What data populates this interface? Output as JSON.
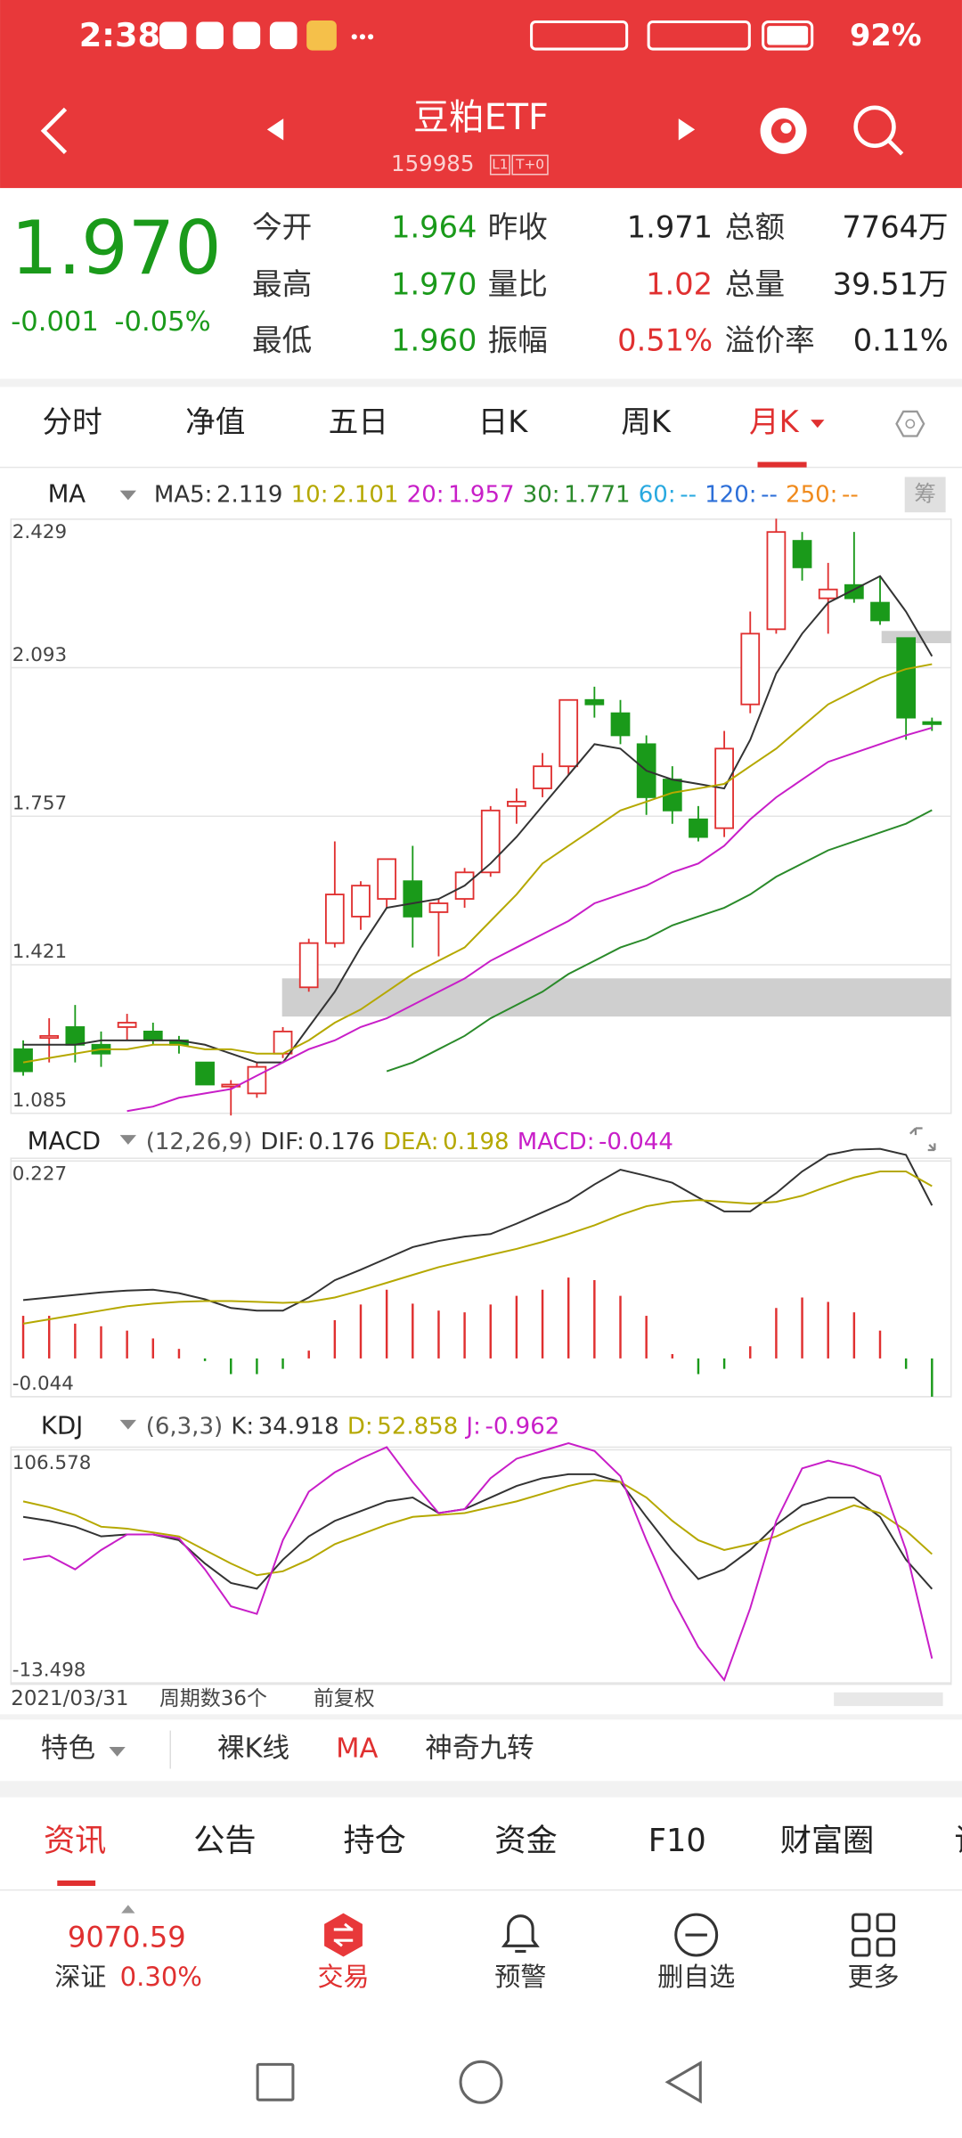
{
  "status_bar": {
    "time": "2:38",
    "battery": "92%"
  },
  "header": {
    "title": "豆粕ETF",
    "code": "159985",
    "badges": [
      "L1",
      "T+0"
    ]
  },
  "quote": {
    "price": "1.970",
    "change": "-0.001",
    "change_pct": "-0.05%",
    "color": "#1a9a1a",
    "fields": [
      {
        "label": "今开",
        "value": "1.964",
        "color": "#1a9a1a"
      },
      {
        "label": "昨收",
        "value": "1.971",
        "color": "#222222"
      },
      {
        "label": "总额",
        "value": "7764万",
        "color": "#222222"
      },
      {
        "label": "最高",
        "value": "1.970",
        "color": "#1a9a1a"
      },
      {
        "label": "量比",
        "value": "1.02",
        "color": "#e03030"
      },
      {
        "label": "总量",
        "value": "39.51万",
        "color": "#222222"
      },
      {
        "label": "最低",
        "value": "1.960",
        "color": "#1a9a1a"
      },
      {
        "label": "振幅",
        "value": "0.51%",
        "color": "#e03030"
      },
      {
        "label": "溢价率",
        "value": "0.11%",
        "color": "#222222"
      }
    ]
  },
  "tabs": [
    "分时",
    "净值",
    "五日",
    "日K",
    "周K",
    "月K"
  ],
  "chart": {
    "up_color": "#e03030",
    "down_color": "#1a9a1a",
    "ma_label": "MA",
    "side_label": "筹",
    "ylim": [
      1.085,
      2.429
    ],
    "yticks": [
      2.429,
      2.093,
      1.757,
      1.421,
      1.085
    ],
    "candles": [
      {
        "open": 1.23,
        "high": 1.25,
        "low": 1.17,
        "close": 1.18
      },
      {
        "open": 1.26,
        "high": 1.3,
        "low": 1.2,
        "close": 1.26
      },
      {
        "open": 1.28,
        "high": 1.33,
        "low": 1.2,
        "close": 1.24
      },
      {
        "open": 1.24,
        "high": 1.27,
        "low": 1.19,
        "close": 1.22
      },
      {
        "open": 1.28,
        "high": 1.31,
        "low": 1.25,
        "close": 1.29
      },
      {
        "open": 1.27,
        "high": 1.29,
        "low": 1.24,
        "close": 1.25
      },
      {
        "open": 1.25,
        "high": 1.26,
        "low": 1.22,
        "close": 1.24
      },
      {
        "open": 1.2,
        "high": 1.2,
        "low": 1.15,
        "close": 1.15
      },
      {
        "open": 1.15,
        "high": 1.16,
        "low": 1.08,
        "close": 1.15
      },
      {
        "open": 1.13,
        "high": 1.2,
        "low": 1.12,
        "close": 1.19
      },
      {
        "open": 1.22,
        "high": 1.28,
        "low": 1.21,
        "close": 1.27
      },
      {
        "open": 1.37,
        "high": 1.48,
        "low": 1.36,
        "close": 1.47
      },
      {
        "open": 1.47,
        "high": 1.7,
        "low": 1.46,
        "close": 1.58
      },
      {
        "open": 1.53,
        "high": 1.61,
        "low": 1.5,
        "close": 1.6
      },
      {
        "open": 1.57,
        "high": 1.66,
        "low": 1.55,
        "close": 1.66
      },
      {
        "open": 1.61,
        "high": 1.69,
        "low": 1.46,
        "close": 1.53
      },
      {
        "open": 1.54,
        "high": 1.57,
        "low": 1.44,
        "close": 1.56
      },
      {
        "open": 1.57,
        "high": 1.64,
        "low": 1.55,
        "close": 1.63
      },
      {
        "open": 1.63,
        "high": 1.78,
        "low": 1.62,
        "close": 1.77
      },
      {
        "open": 1.78,
        "high": 1.82,
        "low": 1.74,
        "close": 1.79
      },
      {
        "open": 1.82,
        "high": 1.9,
        "low": 1.8,
        "close": 1.87
      },
      {
        "open": 1.87,
        "high": 2.02,
        "low": 1.85,
        "close": 2.02
      },
      {
        "open": 2.02,
        "high": 2.05,
        "low": 1.98,
        "close": 2.01
      },
      {
        "open": 1.99,
        "high": 2.02,
        "low": 1.92,
        "close": 1.94
      },
      {
        "open": 1.92,
        "high": 1.94,
        "low": 1.76,
        "close": 1.8
      },
      {
        "open": 1.84,
        "high": 1.87,
        "low": 1.74,
        "close": 1.77
      },
      {
        "open": 1.75,
        "high": 1.78,
        "low": 1.7,
        "close": 1.71
      },
      {
        "open": 1.73,
        "high": 1.95,
        "low": 1.71,
        "close": 1.91
      },
      {
        "open": 2.01,
        "high": 2.22,
        "low": 1.99,
        "close": 2.17
      },
      {
        "open": 2.18,
        "high": 2.43,
        "low": 2.17,
        "close": 2.4
      },
      {
        "open": 2.38,
        "high": 2.4,
        "low": 2.29,
        "close": 2.32
      },
      {
        "open": 2.25,
        "high": 2.33,
        "low": 2.17,
        "close": 2.27
      },
      {
        "open": 2.28,
        "high": 2.4,
        "low": 2.24,
        "close": 2.25
      },
      {
        "open": 2.24,
        "high": 2.3,
        "low": 2.19,
        "close": 2.2
      },
      {
        "open": 2.16,
        "high": 2.16,
        "low": 1.93,
        "close": 1.98
      },
      {
        "open": 1.97,
        "high": 1.98,
        "low": 1.95,
        "close": 1.97
      }
    ],
    "ma": [
      {
        "name": "MA5:",
        "color": "#333333",
        "values": [
          1.24,
          1.24,
          1.24,
          1.25,
          1.25,
          1.25,
          1.25,
          1.24,
          1.22,
          1.2,
          1.2,
          1.28,
          1.36,
          1.46,
          1.55,
          1.56,
          1.57,
          1.6,
          1.65,
          1.71,
          1.78,
          1.85,
          1.92,
          1.91,
          1.86,
          1.84,
          1.83,
          1.82,
          1.93,
          2.08,
          2.17,
          2.24,
          2.27,
          2.3,
          2.22,
          2.119
        ]
      },
      {
        "name": "10:",
        "color": "#b5a800",
        "values": [
          1.2,
          1.21,
          1.22,
          1.23,
          1.23,
          1.24,
          1.24,
          1.23,
          1.23,
          1.22,
          1.22,
          1.25,
          1.29,
          1.32,
          1.36,
          1.4,
          1.43,
          1.46,
          1.52,
          1.58,
          1.65,
          1.69,
          1.73,
          1.77,
          1.79,
          1.81,
          1.82,
          1.83,
          1.87,
          1.91,
          1.96,
          2.01,
          2.04,
          2.07,
          2.09,
          2.101
        ]
      },
      {
        "name": "20:",
        "color": "#c81ec8",
        "values": [
          null,
          null,
          null,
          null,
          1.09,
          1.1,
          1.12,
          1.13,
          1.14,
          1.17,
          1.2,
          1.23,
          1.25,
          1.28,
          1.3,
          1.33,
          1.36,
          1.39,
          1.43,
          1.46,
          1.49,
          1.52,
          1.56,
          1.58,
          1.6,
          1.63,
          1.65,
          1.69,
          1.75,
          1.8,
          1.84,
          1.88,
          1.9,
          1.92,
          1.94,
          1.957
        ]
      },
      {
        "name": "30:",
        "color": "#2a8a2a",
        "values": [
          null,
          null,
          null,
          null,
          null,
          null,
          null,
          null,
          null,
          null,
          null,
          null,
          null,
          null,
          1.18,
          1.2,
          1.23,
          1.26,
          1.3,
          1.33,
          1.36,
          1.4,
          1.43,
          1.46,
          1.48,
          1.51,
          1.53,
          1.55,
          1.58,
          1.62,
          1.65,
          1.68,
          1.7,
          1.72,
          1.74,
          1.771
        ]
      },
      {
        "name": "60:",
        "color": "#29a9e0",
        "label": "--"
      },
      {
        "name": "120:",
        "color": "#2d6fd8",
        "label": "--"
      },
      {
        "name": "250:",
        "color": "#f08a1c",
        "label": "--"
      }
    ],
    "macd": {
      "label": "MACD",
      "params": "(12,26,9)",
      "ylim": [
        -0.044,
        0.227
      ],
      "yticks": [
        0.227,
        -0.044
      ],
      "dif": {
        "name": "DIF:",
        "color": "#333333",
        "values": [
          0.067,
          0.07,
          0.073,
          0.076,
          0.078,
          0.079,
          0.075,
          0.068,
          0.058,
          0.055,
          0.055,
          0.07,
          0.09,
          0.102,
          0.115,
          0.128,
          0.135,
          0.14,
          0.143,
          0.155,
          0.168,
          0.181,
          0.2,
          0.217,
          0.21,
          0.202,
          0.185,
          0.169,
          0.169,
          0.19,
          0.215,
          0.234,
          0.24,
          0.241,
          0.234,
          0.176
        ]
      },
      "dea": {
        "name": "DEA:",
        "color": "#b5a800",
        "values": [
          0.04,
          0.045,
          0.05,
          0.055,
          0.06,
          0.063,
          0.065,
          0.066,
          0.066,
          0.065,
          0.064,
          0.065,
          0.07,
          0.078,
          0.087,
          0.096,
          0.105,
          0.112,
          0.119,
          0.126,
          0.134,
          0.143,
          0.153,
          0.165,
          0.175,
          0.18,
          0.182,
          0.18,
          0.178,
          0.18,
          0.187,
          0.198,
          0.208,
          0.215,
          0.215,
          0.198
        ]
      },
      "hist": {
        "name": "MACD:",
        "color": "#c81ec8",
        "values": [
          0.049,
          0.049,
          0.04,
          0.037,
          0.032,
          0.023,
          0.011,
          -0.003,
          -0.018,
          -0.018,
          -0.012,
          0.009,
          0.044,
          0.062,
          0.079,
          0.063,
          0.055,
          0.053,
          0.062,
          0.072,
          0.079,
          0.093,
          0.09,
          0.072,
          0.049,
          0.005,
          -0.018,
          -0.012,
          0.014,
          0.058,
          0.07,
          0.065,
          0.053,
          0.032,
          -0.012,
          -0.044
        ]
      }
    },
    "kdj": {
      "label": "KDJ",
      "params": "(6,3,3)",
      "ylim": [
        -13.498,
        106.578
      ],
      "yticks": [
        106.578,
        -13.498
      ],
      "series": [
        {
          "name": "K:",
          "color": "#333333",
          "values": [
            72,
            70,
            67,
            62,
            63,
            63,
            60,
            48,
            38,
            35,
            50,
            62,
            70,
            75,
            80,
            82,
            74,
            76,
            82,
            88,
            92,
            94,
            94,
            90,
            72,
            55,
            40,
            45,
            55,
            68,
            78,
            82,
            82,
            72,
            50,
            34.918
          ]
        },
        {
          "name": "D:",
          "color": "#b5a800",
          "values": [
            80,
            77,
            73,
            67,
            66,
            64,
            62,
            55,
            48,
            42,
            44,
            50,
            58,
            63,
            68,
            72,
            73,
            74,
            77,
            80,
            84,
            88,
            91,
            90,
            82,
            70,
            60,
            55,
            58,
            62,
            68,
            73,
            78,
            74,
            65,
            52.858
          ]
        },
        {
          "name": "J:",
          "color": "#c81ec8",
          "values": [
            50,
            52,
            45,
            55,
            63,
            63,
            61,
            45,
            26,
            22,
            60,
            85,
            95,
            102,
            108,
            90,
            74,
            76,
            92,
            102,
            106,
            110,
            106,
            93,
            60,
            30,
            5,
            -12,
            25,
            70,
            97,
            101,
            98,
            93,
            55,
            -0.962
          ]
        }
      ]
    },
    "footer": {
      "date": "2021/03/31",
      "period": "周期数36个",
      "adjust": "前复权"
    }
  },
  "toolbar": [
    "特色",
    "裸K线",
    "MA",
    "神奇九转"
  ],
  "news_tabs": [
    "资讯",
    "公告",
    "持仓",
    "资金",
    "F10",
    "财富圈",
    "论"
  ],
  "bottom_nav": {
    "index_value": "9070.59",
    "index_name": "深证",
    "index_change": "0.30%",
    "items": [
      "交易",
      "预警",
      "删自选",
      "更多"
    ]
  }
}
